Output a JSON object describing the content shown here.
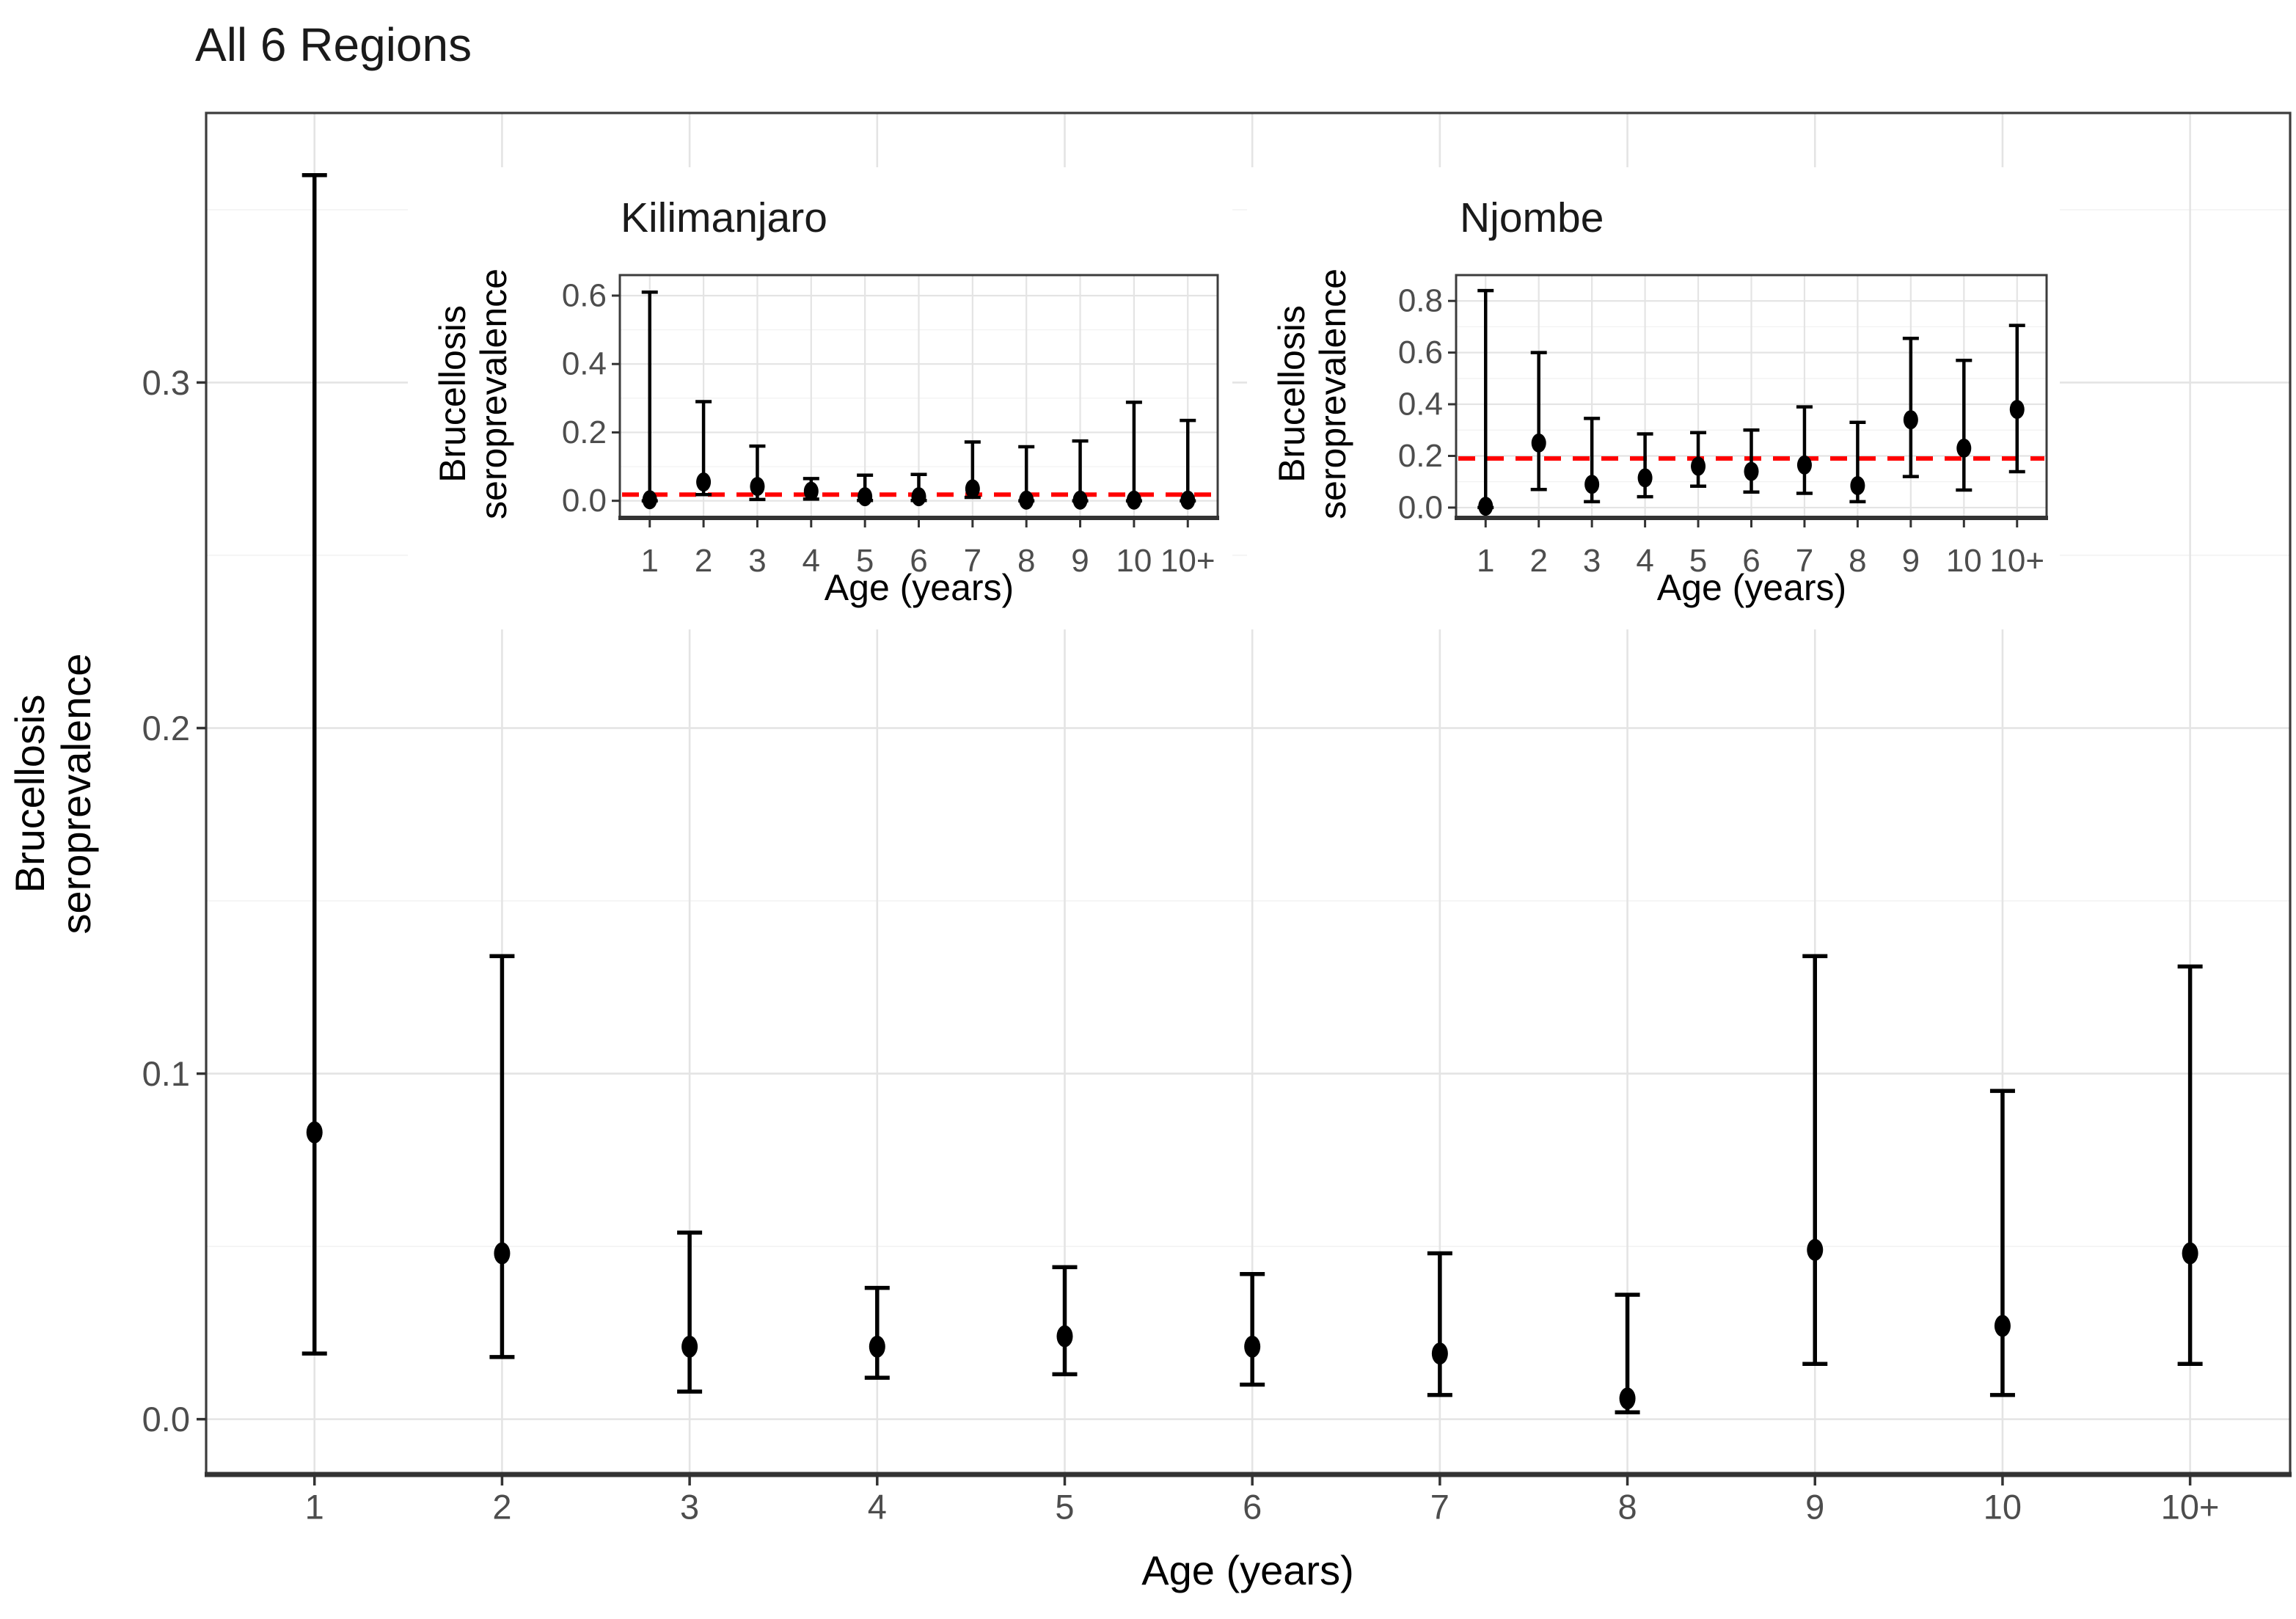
{
  "page": {
    "background": "#ffffff",
    "accent_red": "#ff0000",
    "point_color": "#000000",
    "grid_major_color": "#e4e4e4",
    "grid_minor_color": "#f1f1f1",
    "tick_label_color": "#4d4d4d",
    "border_color": "#3c3c3c"
  },
  "chart_data": [
    {
      "type": "scatter",
      "subtype": "pointrange",
      "title": "All 6 Regions",
      "xlabel": "Age (years)",
      "ylabel": "Brucellosis seroprevalence",
      "categories": [
        "1",
        "2",
        "3",
        "4",
        "5",
        "6",
        "7",
        "8",
        "9",
        "10",
        "10+"
      ],
      "series": [
        {
          "name": "Seroprevalence estimate",
          "values": [
            0.083,
            0.048,
            0.021,
            0.021,
            0.024,
            0.021,
            0.019,
            0.006,
            0.049,
            0.027,
            0.048
          ]
        },
        {
          "name": "95% CI lower",
          "values": [
            0.019,
            0.018,
            0.008,
            0.012,
            0.013,
            0.01,
            0.007,
            0.002,
            0.016,
            0.007,
            0.016
          ]
        },
        {
          "name": "95% CI upper",
          "values": [
            0.36,
            0.134,
            0.054,
            0.038,
            0.044,
            0.042,
            0.048,
            0.036,
            0.134,
            0.095,
            0.131
          ]
        }
      ],
      "yticks": [
        0.0,
        0.1,
        0.2,
        0.3
      ],
      "ytick_labels": [
        "0.0",
        "0.1",
        "0.2",
        "0.3"
      ],
      "ylim": [
        -0.016,
        0.378
      ],
      "grid": "major+minor",
      "legend": "none"
    },
    {
      "type": "scatter",
      "subtype": "pointrange",
      "title": "Kilimanjaro",
      "xlabel": "Age (years)",
      "ylabel": "Brucellosis seroprevalence",
      "categories": [
        "1",
        "2",
        "3",
        "4",
        "5",
        "6",
        "7",
        "8",
        "9",
        "10",
        "10+"
      ],
      "series": [
        {
          "name": "Seroprevalence estimate",
          "values": [
            0.003,
            0.055,
            0.042,
            0.028,
            0.012,
            0.012,
            0.035,
            0.002,
            0.002,
            0.002,
            0.002
          ]
        },
        {
          "name": "95% CI lower",
          "values": [
            0.0,
            0.018,
            0.004,
            0.005,
            0.001,
            0.001,
            0.01,
            0.0,
            0.0,
            0.0,
            0.0
          ]
        },
        {
          "name": "95% CI upper",
          "values": [
            0.61,
            0.29,
            0.16,
            0.065,
            0.075,
            0.077,
            0.172,
            0.158,
            0.175,
            0.288,
            0.235
          ]
        }
      ],
      "yticks": [
        0.0,
        0.2,
        0.4,
        0.6
      ],
      "ytick_labels": [
        "0.0",
        "0.2",
        "0.4",
        "0.6"
      ],
      "ylim": [
        -0.05,
        0.66
      ],
      "grid": "major+minor",
      "legend": "none",
      "reference_line": {
        "value": 0.018,
        "color": "#ff0000",
        "style": "dashed"
      }
    },
    {
      "type": "scatter",
      "subtype": "pointrange",
      "title": "Njombe",
      "xlabel": "Age (years)",
      "ylabel": "Brucellosis seroprevalence",
      "categories": [
        "1",
        "2",
        "3",
        "4",
        "5",
        "6",
        "7",
        "8",
        "9",
        "10",
        "10+"
      ],
      "series": [
        {
          "name": "Seroprevalence estimate",
          "values": [
            0.005,
            0.25,
            0.09,
            0.115,
            0.16,
            0.14,
            0.165,
            0.085,
            0.34,
            0.23,
            0.38
          ]
        },
        {
          "name": "95% CI lower",
          "values": [
            0.0,
            0.07,
            0.023,
            0.042,
            0.083,
            0.06,
            0.055,
            0.023,
            0.12,
            0.068,
            0.139
          ]
        },
        {
          "name": "95% CI upper",
          "values": [
            0.84,
            0.6,
            0.345,
            0.285,
            0.29,
            0.3,
            0.39,
            0.33,
            0.655,
            0.57,
            0.705
          ]
        }
      ],
      "yticks": [
        0.0,
        0.2,
        0.4,
        0.6,
        0.8
      ],
      "ytick_labels": [
        "0.0",
        "0.2",
        "0.4",
        "0.6",
        "0.8"
      ],
      "ylim": [
        -0.04,
        0.9
      ],
      "grid": "major+minor",
      "legend": "none",
      "reference_line": {
        "value": 0.19,
        "color": "#ff0000",
        "style": "dashed"
      }
    }
  ]
}
